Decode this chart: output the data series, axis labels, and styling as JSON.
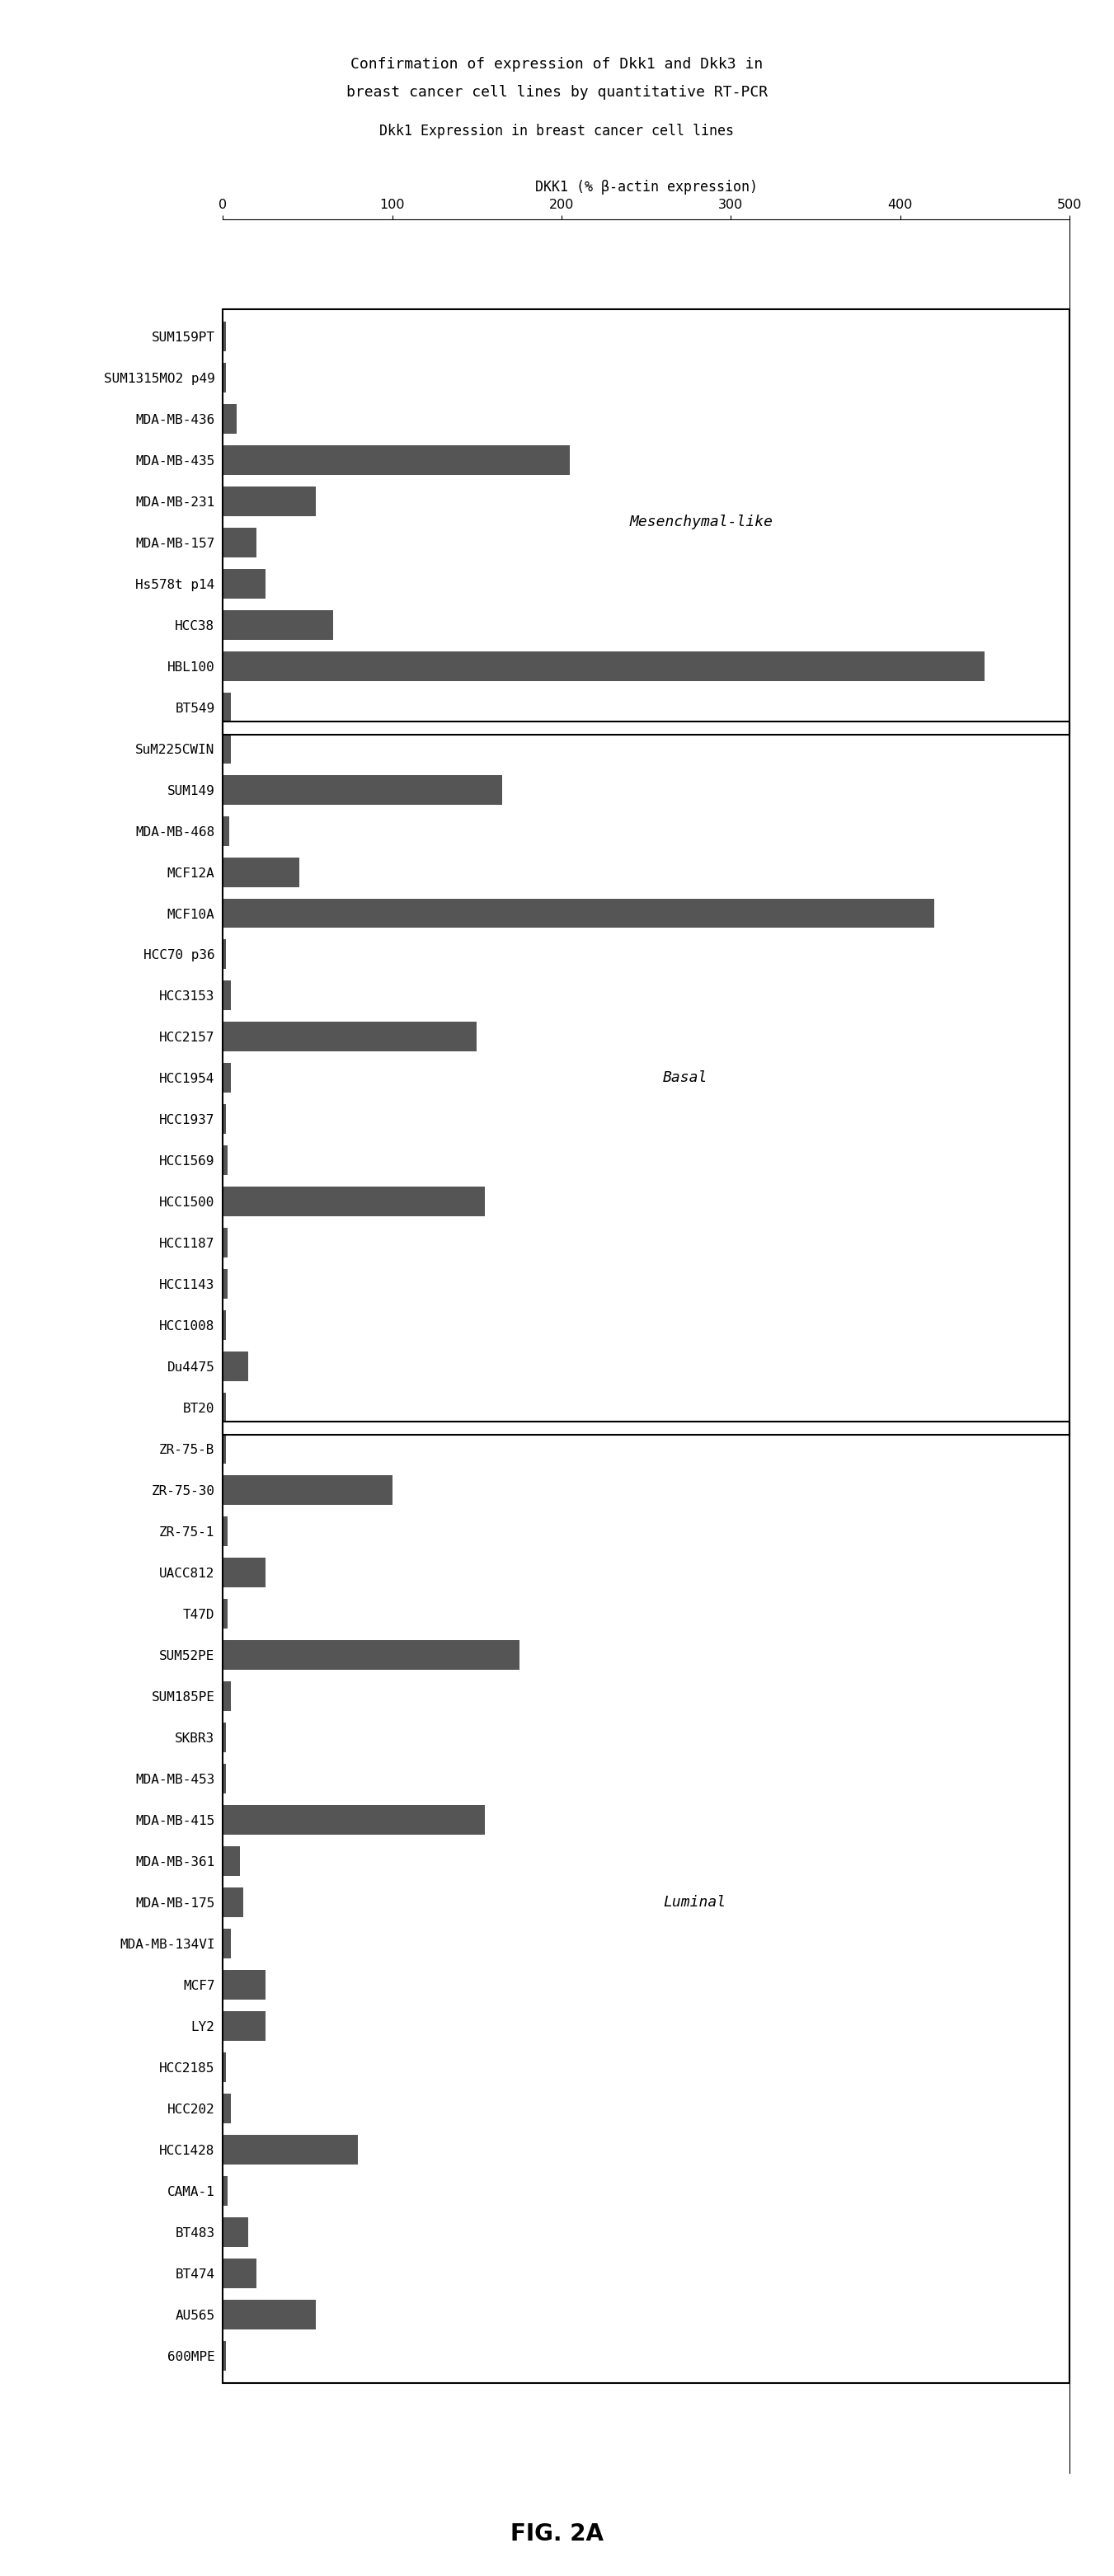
{
  "title_line1": "Confirmation of expression of Dkk1 and Dkk3 in",
  "title_line2": "breast cancer cell lines by quantitative RT-PCR",
  "subtitle": "Dkk1 Expression in breast cancer cell lines",
  "xlabel": "DKK1 (% β-actin expression)",
  "xlim": [
    0,
    500
  ],
  "xticks": [
    0,
    100,
    200,
    300,
    400,
    500
  ],
  "fig_caption": "FIG. 2A",
  "background_color": "#ffffff",
  "bar_color": "#555555",
  "categories": [
    "SUM159PT",
    "SUM1315MO2 p49",
    "MDA-MB-436",
    "MDA-MB-435",
    "MDA-MB-231",
    "MDA-MB-157",
    "Hs578t p14",
    "HCC38",
    "HBL100",
    "BT549",
    "SuM225CWIN",
    "SUM149",
    "MDA-MB-468",
    "MCF12A",
    "MCF10A",
    "HCC70 p36",
    "HCC3153",
    "HCC2157",
    "HCC1954",
    "HCC1937",
    "HCC1569",
    "HCC1500",
    "HCC1187",
    "HCC1143",
    "HCC1008",
    "Du4475",
    "BT20",
    "ZR-75-B",
    "ZR-75-30",
    "ZR-75-1",
    "UACC812",
    "T47D",
    "SUM52PE",
    "SUM185PE",
    "SKBR3",
    "MDA-MB-453",
    "MDA-MB-415",
    "MDA-MB-361",
    "MDA-MB-175",
    "MDA-MB-134VI",
    "MCF7",
    "LY2",
    "HCC2185",
    "HCC202",
    "HCC1428",
    "CAMA-1",
    "BT483",
    "BT474",
    "AU565",
    "600MPE"
  ],
  "values": [
    2,
    2,
    8,
    205,
    55,
    20,
    25,
    65,
    450,
    5,
    5,
    165,
    4,
    45,
    420,
    2,
    5,
    150,
    5,
    2,
    3,
    155,
    3,
    3,
    2,
    15,
    2,
    2,
    100,
    3,
    25,
    3,
    175,
    5,
    2,
    2,
    155,
    10,
    12,
    5,
    25,
    25,
    2,
    5,
    80,
    3,
    15,
    20,
    55,
    2
  ],
  "groups": {
    "Mesenchymal-like": [
      0,
      9
    ],
    "Basal": [
      10,
      26
    ],
    "Luminal": [
      27,
      49
    ]
  }
}
